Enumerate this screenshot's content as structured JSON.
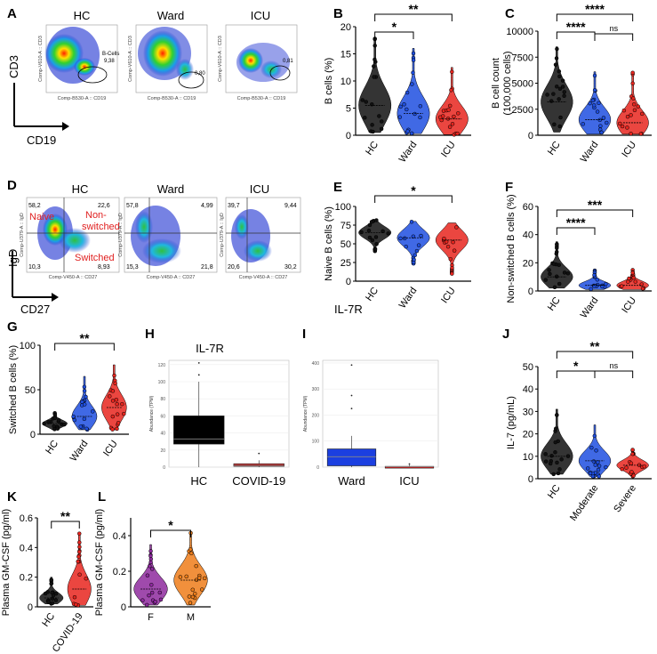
{
  "panels": {
    "A": {
      "label": "A",
      "groups": [
        "HC",
        "Ward",
        "ICU"
      ],
      "gates": [
        "9,38",
        "0,80",
        "0,81"
      ],
      "gate_name": "B-Cells",
      "x_channel": "Comp-B530-A :: CD19",
      "y_channel": "Comp-V610-A :: CD3",
      "x_axis": "CD19",
      "y_axis": "CD3"
    },
    "D": {
      "label": "D",
      "groups": [
        "HC",
        "Ward",
        "ICU"
      ],
      "quadrants": [
        [
          "58,2",
          "22,6",
          "10,3",
          "8,93"
        ],
        [
          "57,8",
          "4,99",
          "15,3",
          "21,8"
        ],
        [
          "39,7",
          "9,44",
          "20,6",
          "30,2"
        ]
      ],
      "quad_names": {
        "naive": "Naive",
        "nonswitched": "Non-\nswitched",
        "switched": "Switched"
      },
      "x_channel": "Comp-V450-A :: CD27",
      "y_channel": "Comp-U379-A :: IgD",
      "x_axis": "CD27",
      "y_axis": "IgD"
    },
    "E_extra": {
      "label": "IL-7R"
    },
    "H_title": "IL-7R",
    "letters": {
      "B": "B",
      "C": "C",
      "E": "E",
      "F": "F",
      "G": "G",
      "H": "H",
      "I": "I",
      "J": "J",
      "K": "K",
      "L": "L"
    }
  },
  "colors": {
    "black": "#111111",
    "blue": "#1f4fe0",
    "red": "#e8261f",
    "purple": "#8e2a9e",
    "orange": "#ee7d1a",
    "box_black": "#000000",
    "box_red": "#c82020",
    "box_blue": "#1b3fe0"
  },
  "chart_data": [
    {
      "id": "B",
      "type": "violin",
      "title": "",
      "ylabel": "B cells (%)",
      "categories": [
        "HC",
        "Ward",
        "ICU"
      ],
      "ylim": [
        0,
        20
      ],
      "yticks": [
        0,
        5,
        10,
        15,
        20
      ],
      "series": [
        {
          "name": "HC",
          "median": 5.5,
          "min": 0.5,
          "max": 18
        },
        {
          "name": "Ward",
          "median": 4,
          "min": 0.3,
          "max": 16
        },
        {
          "name": "ICU",
          "median": 3,
          "min": 0.1,
          "max": 12.5
        }
      ],
      "sig": [
        {
          "from": "HC",
          "to": "Ward",
          "text": "*"
        },
        {
          "from": "HC",
          "to": "ICU",
          "text": "**"
        }
      ]
    },
    {
      "id": "C",
      "type": "violin",
      "ylabel": "B cell count\n(100,000 cells)",
      "categories": [
        "HC",
        "Ward",
        "ICU"
      ],
      "ylim": [
        0,
        10000
      ],
      "yticks": [
        0,
        2500,
        5000,
        7500,
        10000
      ],
      "series": [
        {
          "name": "HC",
          "median": 3200,
          "min": 300,
          "max": 8500
        },
        {
          "name": "Ward",
          "median": 1500,
          "min": 100,
          "max": 6100
        },
        {
          "name": "ICU",
          "median": 1200,
          "min": 100,
          "max": 6100
        }
      ],
      "sig": [
        {
          "from": "HC",
          "to": "Ward",
          "text": "****"
        },
        {
          "from": "HC",
          "to": "ICU",
          "text": "****"
        },
        {
          "from": "Ward",
          "to": "ICU",
          "text": "ns"
        }
      ]
    },
    {
      "id": "E",
      "type": "violin",
      "ylabel": "Naive B cells (%)",
      "categories": [
        "HC",
        "Ward",
        "ICU"
      ],
      "ylim": [
        0,
        100
      ],
      "yticks": [
        0,
        25,
        50,
        75,
        100
      ],
      "series": [
        {
          "name": "HC",
          "median": 65,
          "min": 40,
          "max": 82
        },
        {
          "name": "Ward",
          "median": 58,
          "min": 22,
          "max": 80
        },
        {
          "name": "ICU",
          "median": 55,
          "min": 10,
          "max": 78
        }
      ],
      "sig": [
        {
          "from": "HC",
          "to": "ICU",
          "text": "*"
        }
      ]
    },
    {
      "id": "F",
      "type": "violin",
      "ylabel": "Non-switched B cells (%)",
      "categories": [
        "HC",
        "Ward",
        "ICU"
      ],
      "ylim": [
        0,
        60
      ],
      "yticks": [
        0,
        20,
        40,
        60
      ],
      "series": [
        {
          "name": "HC",
          "median": 10,
          "min": 2,
          "max": 35
        },
        {
          "name": "Ward",
          "median": 4,
          "min": 1,
          "max": 15
        },
        {
          "name": "ICU",
          "median": 4,
          "min": 1,
          "max": 16
        }
      ],
      "sig": [
        {
          "from": "HC",
          "to": "Ward",
          "text": "****"
        },
        {
          "from": "HC",
          "to": "ICU",
          "text": "***"
        }
      ]
    },
    {
      "id": "G",
      "type": "violin",
      "ylabel": "Switched B cells (%)",
      "categories": [
        "HC",
        "Ward",
        "ICU"
      ],
      "ylim": [
        0,
        100
      ],
      "yticks": [
        0,
        50,
        100
      ],
      "series": [
        {
          "name": "HC",
          "median": 12,
          "min": 5,
          "max": 25
        },
        {
          "name": "Ward",
          "median": 20,
          "min": 5,
          "max": 65
        },
        {
          "name": "ICU",
          "median": 30,
          "min": 5,
          "max": 78
        }
      ],
      "sig": [
        {
          "from": "HC",
          "to": "ICU",
          "text": "**"
        }
      ]
    },
    {
      "id": "H",
      "type": "box",
      "title": "IL-7R",
      "ylabel": "Abundance (TPM)",
      "categories": [
        "HC",
        "COVID-19"
      ],
      "ylim": [
        0,
        125
      ],
      "yticks": [
        0,
        20,
        40,
        60,
        80,
        100,
        120
      ],
      "series": [
        {
          "name": "HC",
          "q1": 27,
          "median": 33,
          "q3": 60,
          "min": 0,
          "max": 100,
          "outliers": [
            122,
            108
          ]
        },
        {
          "name": "COVID-19",
          "q1": 1,
          "median": 2,
          "q3": 4,
          "min": 0,
          "max": 8,
          "outliers": [
            16
          ]
        }
      ]
    },
    {
      "id": "I",
      "type": "box",
      "title": "",
      "ylabel": "Abundance (TPM)",
      "categories": [
        "Ward",
        "ICU"
      ],
      "ylim": [
        0,
        410
      ],
      "yticks": [
        0,
        100,
        200,
        300,
        400
      ],
      "series": [
        {
          "name": "Ward",
          "q1": 5,
          "median": 40,
          "q3": 70,
          "min": 0,
          "max": 120,
          "outliers": [
            392,
            275,
            225
          ]
        },
        {
          "name": "ICU",
          "q1": 1,
          "median": 2,
          "q3": 3,
          "min": 0,
          "max": 8,
          "outliers": [
            12
          ]
        }
      ]
    },
    {
      "id": "J",
      "type": "violin",
      "ylabel": "IL-7 (pg/mL)",
      "categories": [
        "HC",
        "Moderate",
        "Severe"
      ],
      "ylim": [
        0,
        50
      ],
      "yticks": [
        0,
        10,
        20,
        30,
        40,
        50
      ],
      "series": [
        {
          "name": "HC",
          "median": 10,
          "min": 2,
          "max": 31
        },
        {
          "name": "Moderate",
          "median": 8,
          "min": 1,
          "max": 24
        },
        {
          "name": "Severe",
          "median": 6,
          "min": 1,
          "max": 13
        }
      ],
      "sig": [
        {
          "from": "HC",
          "to": "Moderate",
          "text": "*"
        },
        {
          "from": "HC",
          "to": "Severe",
          "text": "**"
        },
        {
          "from": "Moderate",
          "to": "Severe",
          "text": "ns"
        }
      ]
    },
    {
      "id": "K",
      "type": "violin",
      "ylabel": "Plasma GM-CSF (pg/ml)",
      "categories": [
        "HC",
        "COVID-19"
      ],
      "ylim": [
        0,
        0.6
      ],
      "yticks": [
        0,
        0.2,
        0.4,
        0.6
      ],
      "series": [
        {
          "name": "HC",
          "median": 0.06,
          "min": 0.02,
          "max": 0.2
        },
        {
          "name": "COVID-19",
          "median": 0.12,
          "min": 0.01,
          "max": 0.5
        }
      ],
      "sig": [
        {
          "from": "HC",
          "to": "COVID-19",
          "text": "**"
        }
      ]
    },
    {
      "id": "L",
      "type": "violin",
      "ylabel": "Plasma GM-CSF (pg/ml)",
      "categories": [
        "F",
        "M"
      ],
      "ylim": [
        0,
        0.5
      ],
      "yticks": [
        0,
        0.2,
        0.4
      ],
      "series": [
        {
          "name": "F",
          "median": 0.1,
          "min": 0.01,
          "max": 0.35
        },
        {
          "name": "M",
          "median": 0.15,
          "min": 0.01,
          "max": 0.42
        }
      ],
      "sig": [
        {
          "from": "F",
          "to": "M",
          "text": "*"
        }
      ]
    }
  ]
}
